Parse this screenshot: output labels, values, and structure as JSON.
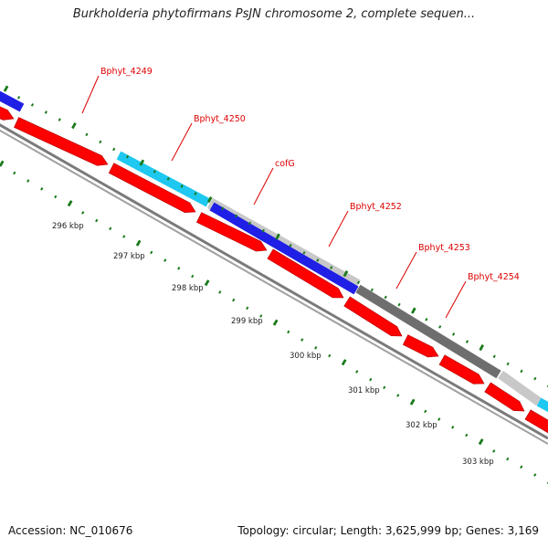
{
  "title": "Burkholderia phytofirmans PsJN chromosome 2, complete sequen...",
  "footer": {
    "accession": "Accession: NC_010676",
    "topology": "Topology: circular; Length: 3,625,999 bp; Genes: 3,169"
  },
  "scale_labels": [
    "296 kbp",
    "297 kbp",
    "298 kbp",
    "299 kbp",
    "300 kbp",
    "301 kbp",
    "302 kbp",
    "303 kbp"
  ],
  "gene_labels": [
    "Bphyt_4249",
    "Bphyt_4250",
    "cofG",
    "Bphyt_4252",
    "Bphyt_4253",
    "Bphyt_4254"
  ],
  "colors": {
    "forward_gene": "#ff0000",
    "label": "#dd0000",
    "tick": "#1a7a1a",
    "backbone": "#888888",
    "blue": "#1f1fe6",
    "cyan": "#1ec8f0",
    "gray_light": "#c8c8c8",
    "gray_dark": "#6e6e6e"
  }
}
